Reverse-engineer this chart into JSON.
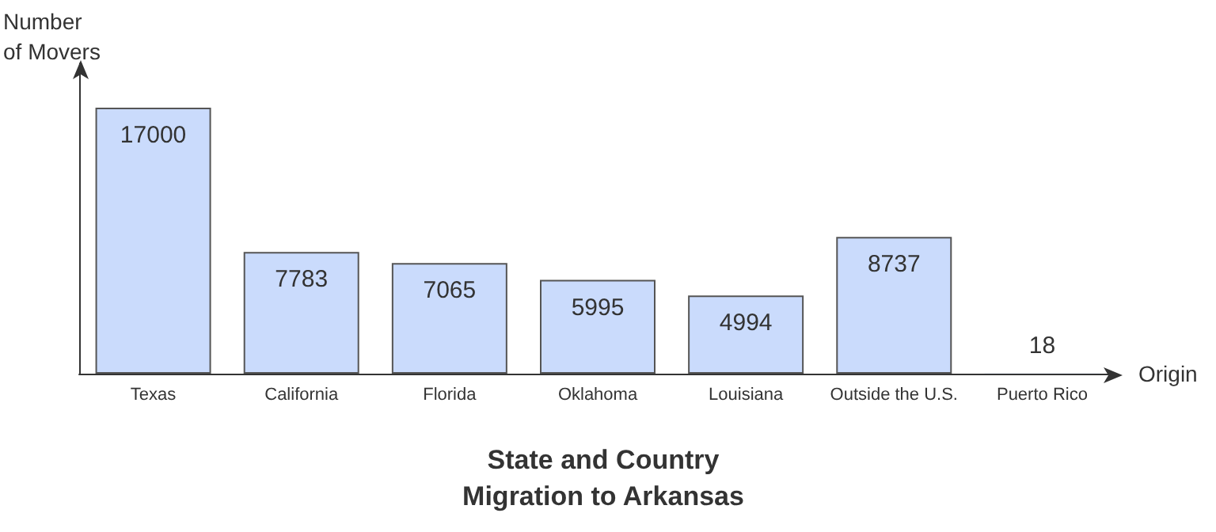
{
  "chart_data": {
    "type": "bar",
    "title": "State and Country Migration to Arkansas",
    "xlabel": "Origin",
    "ylabel": "Number of Movers",
    "categories": [
      "Texas",
      "California",
      "Florida",
      "Oklahoma",
      "Louisiana",
      "Outside the U.S.",
      "Puerto Rico"
    ],
    "values": [
      17000,
      7783,
      7065,
      5995,
      4994,
      8737,
      18
    ],
    "color": "#cadbfc",
    "data_labels": true,
    "grid": false
  }
}
